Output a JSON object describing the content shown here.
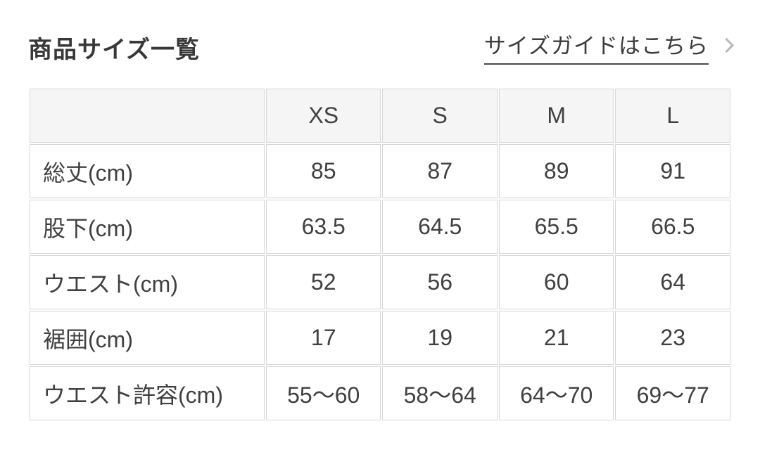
{
  "header": {
    "title": "商品サイズ一覧",
    "size_guide_label": "サイズガイドはこちら",
    "chevron_icon": "chevron-right"
  },
  "table": {
    "corner_label": "",
    "columns": [
      "XS",
      "S",
      "M",
      "L"
    ],
    "rows": [
      {
        "label": "総丈(cm)",
        "values": [
          "85",
          "87",
          "89",
          "91"
        ]
      },
      {
        "label": "股下(cm)",
        "values": [
          "63.5",
          "64.5",
          "65.5",
          "66.5"
        ]
      },
      {
        "label": "ウエスト(cm)",
        "values": [
          "52",
          "56",
          "60",
          "64"
        ]
      },
      {
        "label": "裾囲(cm)",
        "values": [
          "17",
          "19",
          "21",
          "23"
        ]
      },
      {
        "label": "ウエスト許容(cm)",
        "values": [
          "55〜60",
          "58〜64",
          "64〜70",
          "69〜77"
        ]
      }
    ]
  },
  "colors": {
    "page_background": "#ffffff",
    "title_text": "#383838",
    "cell_text": "#404040",
    "table_border": "#d6d6d6",
    "header_cell_background": "#f5f5f5",
    "link_underline": "#4a4a4a",
    "chevron": "#b9b9b9"
  }
}
